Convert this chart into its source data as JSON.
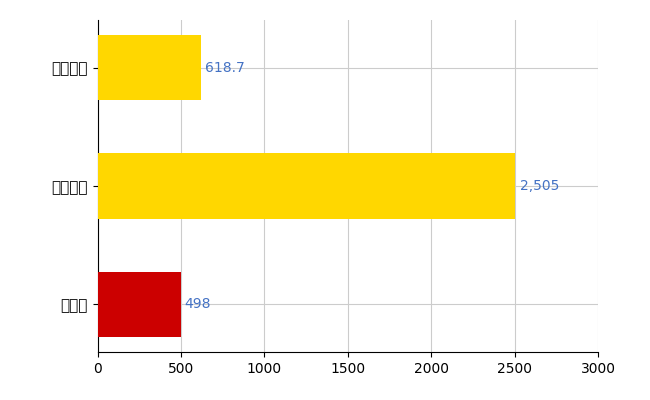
{
  "categories": [
    "群馬県",
    "全国最大",
    "全国平均"
  ],
  "values": [
    498,
    2505,
    618.7
  ],
  "bar_colors": [
    "#CC0000",
    "#FFD700",
    "#FFD700"
  ],
  "value_labels": [
    "498",
    "2,505",
    "618.7"
  ],
  "xlim": [
    0,
    3000
  ],
  "xticks": [
    0,
    500,
    1000,
    1500,
    2000,
    2500,
    3000
  ],
  "bar_height": 0.55,
  "background_color": "#FFFFFF",
  "grid_color": "#CCCCCC",
  "label_color": "#4472C4",
  "label_fontsize": 10,
  "tick_fontsize": 10,
  "ytick_fontsize": 11
}
